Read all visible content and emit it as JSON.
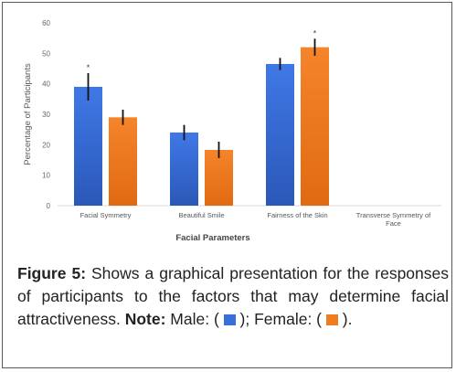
{
  "chart_data": {
    "type": "bar",
    "categories": [
      "Facial Symmetry",
      "Beautiful Smile",
      "Fairness of the Skin",
      "Transverse Symmetry of Face"
    ],
    "series": [
      {
        "name": "Male",
        "values": [
          39,
          24,
          46.5,
          null
        ],
        "errors": [
          4.5,
          2.5,
          2,
          null
        ],
        "color": "#3a6fd8"
      },
      {
        "name": "Female",
        "values": [
          29,
          18.3,
          52,
          null
        ],
        "errors": [
          2.5,
          2.7,
          2.8,
          null
        ],
        "color": "#ee7d22"
      }
    ],
    "significance_markers": [
      {
        "category_index": 0,
        "series_index": 0,
        "text": "*"
      },
      {
        "category_index": 2,
        "series_index": 1,
        "text": "*"
      }
    ],
    "y_ticks": [
      0,
      10,
      20,
      30,
      40,
      50,
      60
    ],
    "ylim": [
      0,
      60
    ],
    "ylabel": "Percentage of Participants",
    "xlabel": "Facial Parameters",
    "title": ""
  },
  "caption": {
    "figure_label": "Figure 5:",
    "text": " Shows a graphical presentation for the responses of participants to the factors that may determine facial attractiveness. ",
    "note_label": "Note:",
    "male_label": " Male: (",
    "male_close": ");",
    "female_label": " Female: (",
    "female_close": ")."
  },
  "colors": {
    "male": "#3a6fd8",
    "female": "#ee7d22"
  }
}
